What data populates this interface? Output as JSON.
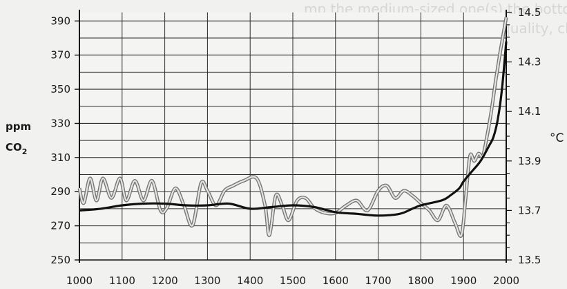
{
  "background_text": [
    "mp the medium-sized one(s) the bottom scale, blue",
    "performing work to produce quality, chart of ten-t"
  ],
  "chart_data": {
    "type": "line",
    "title": "",
    "xlabel": "",
    "left_axis": {
      "label_line1": "ppm",
      "label_line2": "CO",
      "label_sub": "2",
      "range": [
        250,
        395
      ],
      "ticks": [
        250,
        270,
        290,
        310,
        330,
        350,
        370,
        390
      ]
    },
    "right_axis": {
      "label": "°C",
      "range": [
        13.5,
        14.5
      ],
      "ticks": [
        13.5,
        13.7,
        13.9,
        14.1,
        14.3,
        14.5
      ],
      "tick_labels": [
        "13.5",
        "13.7",
        "13.9",
        "14.1",
        "14.3",
        "14.5"
      ]
    },
    "x_range": [
      1000,
      2000
    ],
    "x_ticks": [
      1000,
      1100,
      1200,
      1300,
      1400,
      1500,
      1600,
      1700,
      1800,
      1900,
      2000
    ],
    "grid": true,
    "series": [
      {
        "axis": "left",
        "color": "#111111",
        "x": [
          1000,
          1050,
          1100,
          1150,
          1200,
          1250,
          1300,
          1350,
          1400,
          1450,
          1500,
          1550,
          1600,
          1650,
          1700,
          1750,
          1780,
          1800,
          1850,
          1870,
          1890,
          1900,
          1920,
          1940,
          1960,
          1970,
          1980,
          1990,
          2000
        ],
        "values": [
          279,
          280,
          282,
          283,
          283,
          282,
          282,
          283,
          280,
          281,
          282,
          281,
          278,
          277,
          276,
          277,
          280,
          282,
          285,
          288,
          292,
          296,
          302,
          308,
          317,
          322,
          332,
          350,
          378
        ]
      },
      {
        "axis": "right",
        "color": "#a8a8a8",
        "x": [
          1000,
          1010,
          1025,
          1040,
          1055,
          1075,
          1095,
          1110,
          1130,
          1150,
          1170,
          1190,
          1205,
          1225,
          1245,
          1265,
          1285,
          1300,
          1320,
          1340,
          1360,
          1385,
          1415,
          1435,
          1445,
          1460,
          1475,
          1490,
          1510,
          1530,
          1550,
          1575,
          1600,
          1625,
          1650,
          1675,
          1700,
          1720,
          1740,
          1760,
          1780,
          1800,
          1820,
          1840,
          1860,
          1880,
          1895,
          1905,
          1915,
          1925,
          1935,
          1945,
          1955,
          1965,
          1975,
          1985,
          1995,
          2000
        ],
        "values": [
          13.79,
          13.73,
          13.83,
          13.74,
          13.83,
          13.75,
          13.83,
          13.74,
          13.82,
          13.74,
          13.82,
          13.7,
          13.71,
          13.79,
          13.72,
          13.64,
          13.81,
          13.78,
          13.72,
          13.78,
          13.8,
          13.82,
          13.83,
          13.72,
          13.6,
          13.76,
          13.72,
          13.66,
          13.74,
          13.75,
          13.71,
          13.69,
          13.69,
          13.72,
          13.74,
          13.7,
          13.78,
          13.8,
          13.75,
          13.78,
          13.76,
          13.73,
          13.7,
          13.66,
          13.72,
          13.65,
          13.6,
          13.75,
          13.92,
          13.9,
          13.93,
          13.92,
          14.0,
          14.1,
          14.22,
          14.33,
          14.43,
          14.48
        ]
      }
    ]
  }
}
